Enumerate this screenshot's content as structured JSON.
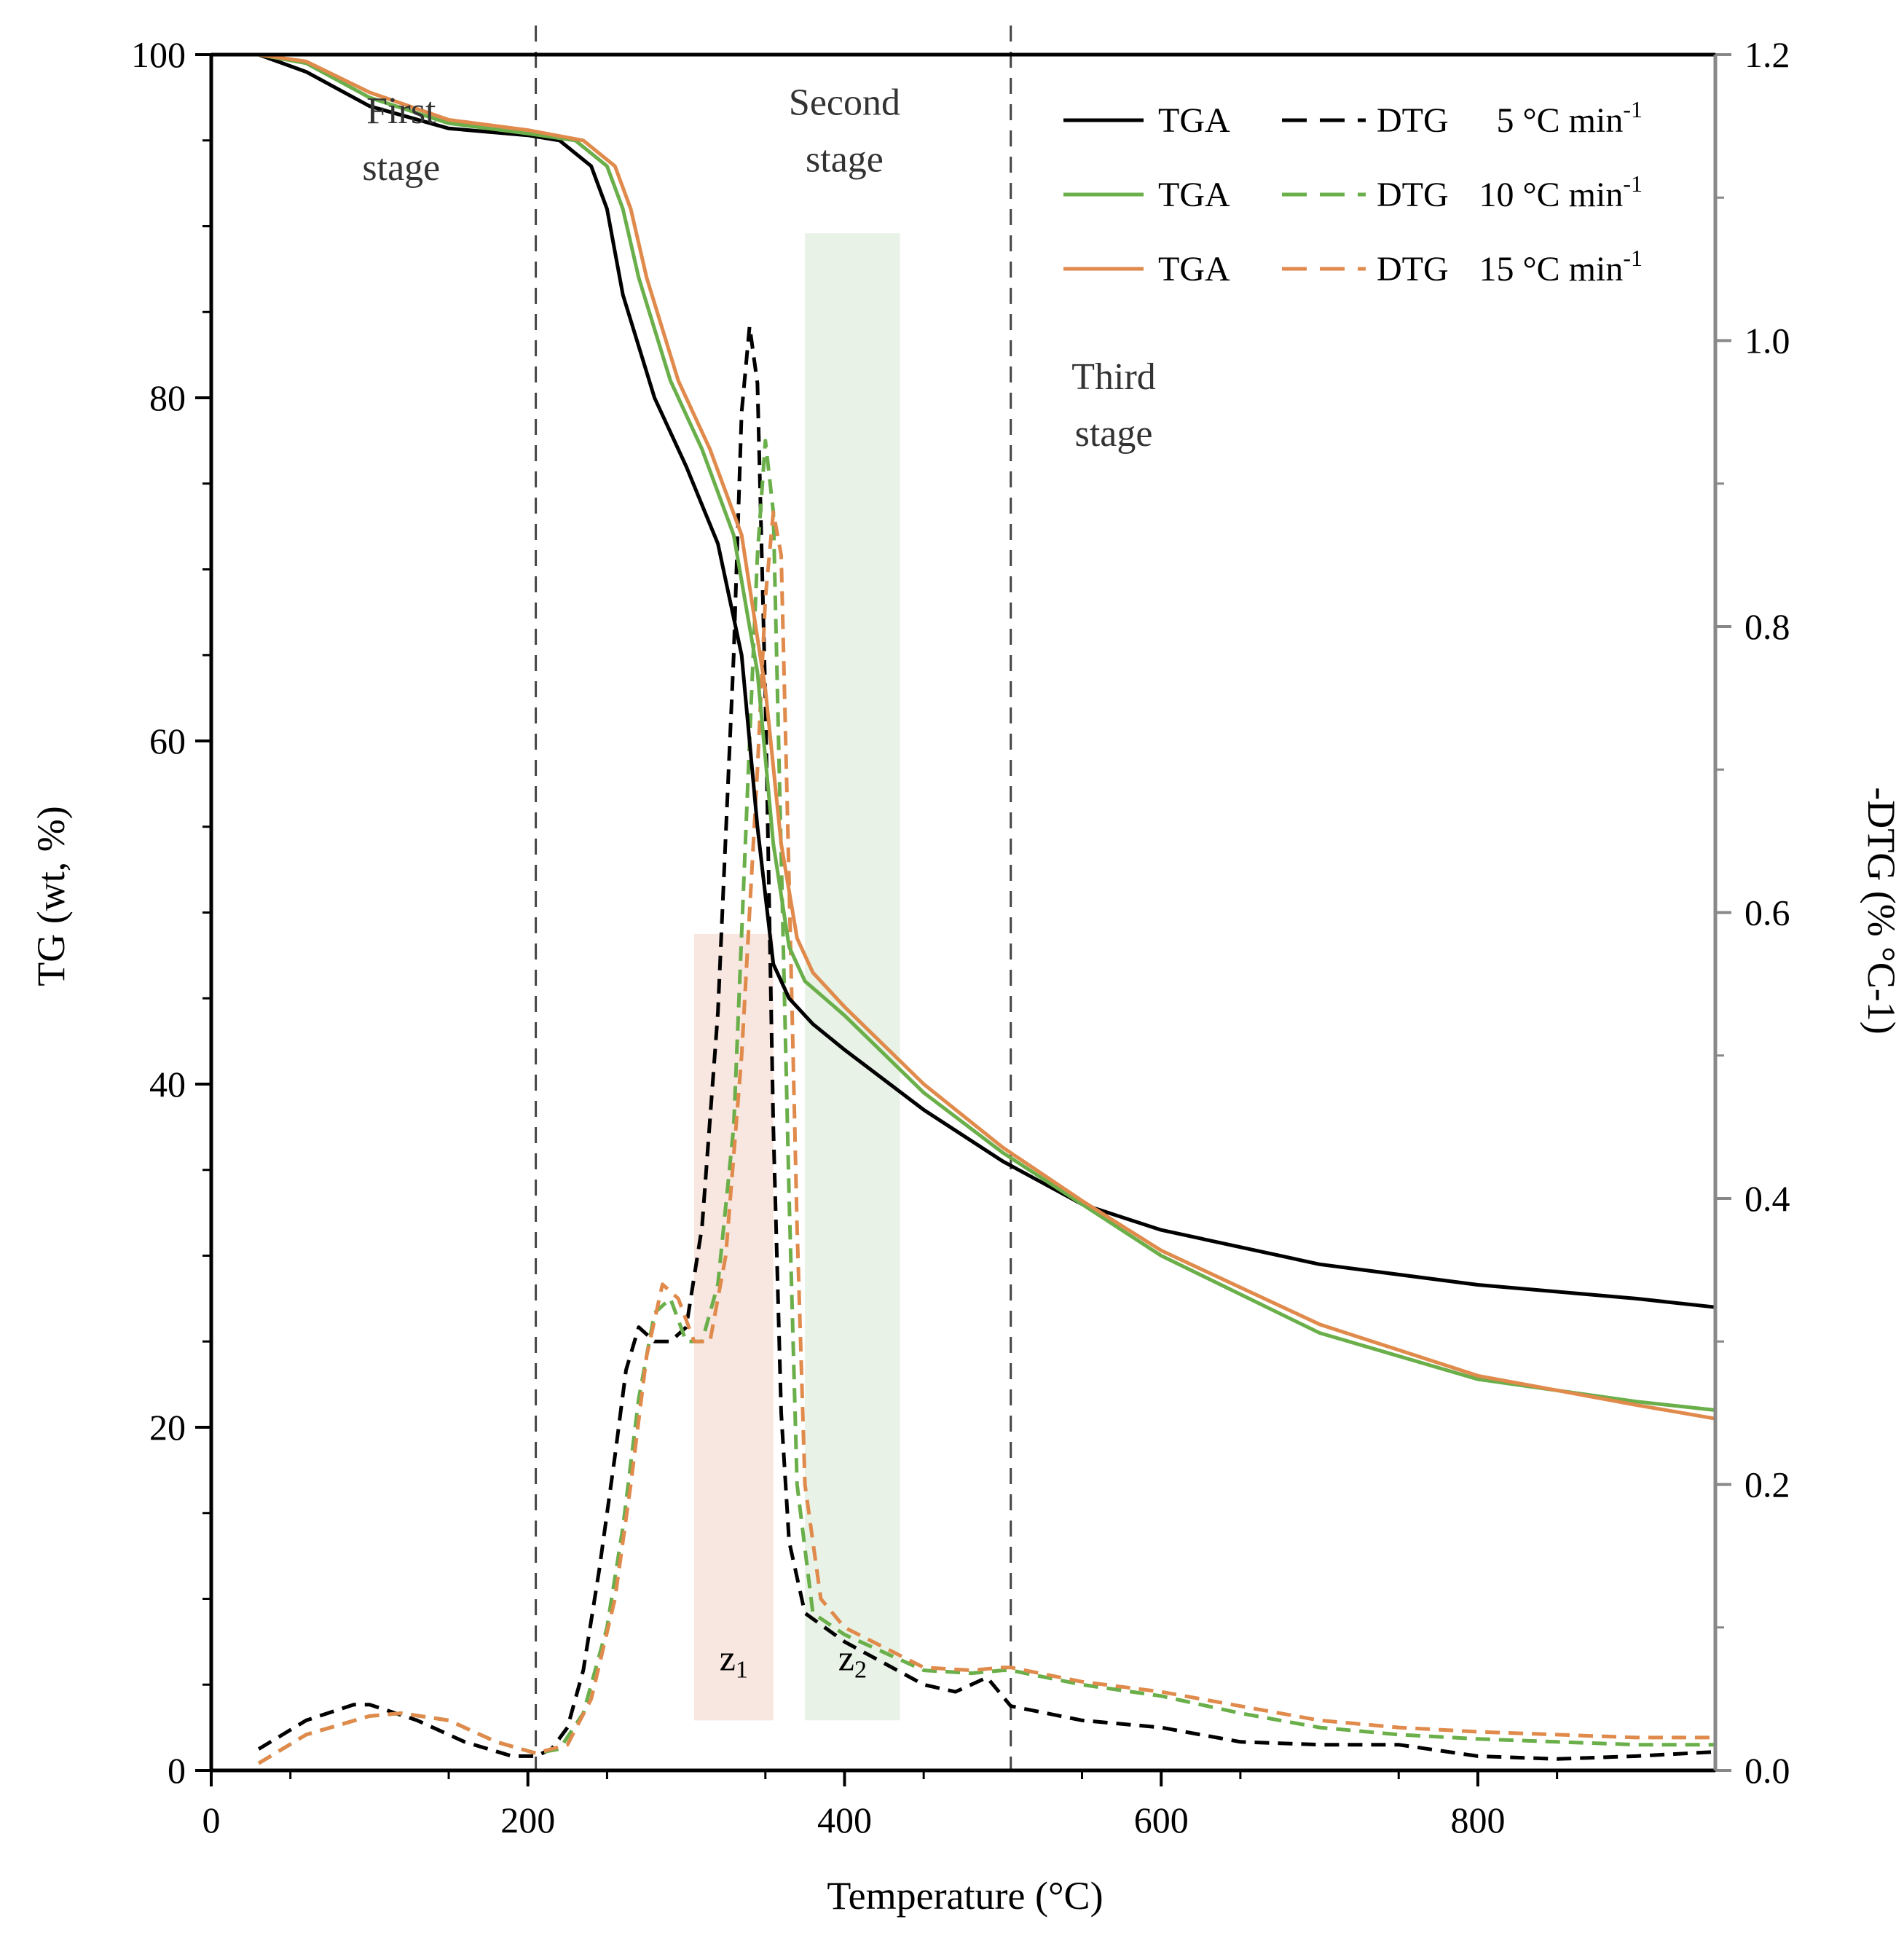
{
  "chart_data": {
    "type": "line",
    "xlabel": "Temperature (°C)",
    "ylabel_left": "TG (wt, %)",
    "ylabel_right": "-DTG (% °C-1)",
    "xlim": [
      0,
      950
    ],
    "ylim_left": [
      0,
      100
    ],
    "ylim_right": [
      0,
      1.2
    ],
    "x_ticks": [
      0,
      200,
      400,
      600,
      800
    ],
    "x_tick_labels": [
      "0",
      "200",
      "400",
      "600",
      "800"
    ],
    "y_left_ticks": [
      0,
      20,
      40,
      60,
      80,
      100
    ],
    "y_left_tick_labels": [
      "0",
      "20",
      "40",
      "60",
      "80",
      "100"
    ],
    "y_right_ticks": [
      0,
      0.2,
      0.4,
      0.6,
      0.8,
      1.0,
      1.2
    ],
    "y_right_tick_labels": [
      "0.0",
      "0.2",
      "0.4",
      "0.6",
      "0.8",
      "1.0",
      "1.2"
    ],
    "stage_dividers": [
      205,
      505
    ],
    "stages": [
      {
        "line1": "First",
        "line2": "stage",
        "x": 120,
        "y": 96
      },
      {
        "line1": "Second",
        "line2": "stage",
        "x": 400,
        "y": 96.5
      },
      {
        "line1": "Third",
        "line2": "stage",
        "x": 570,
        "y": 80.5
      }
    ],
    "zones": [
      {
        "name": "z",
        "sub": "1",
        "x0": 305,
        "x1": 355,
        "y_top_right": 0.585,
        "color": "#f8e6e0"
      },
      {
        "name": "z",
        "sub": "2",
        "x0": 375,
        "x1": 435,
        "y_top_right": 1.075,
        "color": "#e8f2e6"
      }
    ],
    "legend": [
      {
        "tga": "TGA",
        "dtg": "DTG",
        "rate": "5 °C min",
        "sup": "-1",
        "color": "#000000"
      },
      {
        "tga": "TGA",
        "dtg": "DTG",
        "rate": "10 °C min",
        "sup": "-1",
        "color": "#6aaf4a"
      },
      {
        "tga": "TGA",
        "dtg": "DTG",
        "rate": "15 °C min",
        "sup": "-1",
        "color": "#e08a4c"
      }
    ],
    "series": [
      {
        "name": "TGA 5 °C min-1",
        "axis": "left",
        "style": "solid",
        "color": "#000000",
        "x": [
          30,
          60,
          100,
          150,
          200,
          220,
          240,
          250,
          260,
          280,
          300,
          320,
          335,
          345,
          355,
          365,
          380,
          400,
          450,
          500,
          550,
          600,
          700,
          800,
          900,
          950
        ],
        "y": [
          100,
          99,
          97,
          95.7,
          95.3,
          95,
          93.5,
          91,
          86,
          80,
          76,
          71.5,
          65,
          55,
          47,
          45,
          43.5,
          42,
          38.5,
          35.5,
          33,
          31.5,
          29.5,
          28.3,
          27.5,
          27
        ]
      },
      {
        "name": "TGA 10 °C min-1",
        "axis": "left",
        "style": "solid",
        "color": "#6aaf4a",
        "x": [
          30,
          60,
          100,
          150,
          200,
          230,
          250,
          260,
          270,
          290,
          310,
          330,
          345,
          355,
          365,
          375,
          400,
          450,
          500,
          550,
          600,
          700,
          800,
          900,
          950
        ],
        "y": [
          100,
          99.5,
          97.5,
          96,
          95.4,
          95,
          93.5,
          91,
          87,
          81,
          77,
          72,
          64,
          54,
          48,
          46,
          44,
          39.5,
          36,
          33,
          30,
          25.5,
          22.8,
          21.5,
          21
        ]
      },
      {
        "name": "TGA 15 °C min-1",
        "axis": "left",
        "style": "solid",
        "color": "#e08a4c",
        "x": [
          30,
          60,
          100,
          150,
          200,
          235,
          255,
          265,
          275,
          295,
          315,
          335,
          350,
          360,
          370,
          380,
          400,
          450,
          500,
          550,
          600,
          700,
          800,
          900,
          950
        ],
        "y": [
          100,
          99.6,
          97.8,
          96.2,
          95.6,
          95,
          93.5,
          91,
          87,
          81,
          77,
          72,
          63,
          54,
          48.5,
          46.5,
          44.5,
          40,
          36.3,
          33.2,
          30.3,
          26,
          23,
          21.3,
          20.5
        ]
      },
      {
        "name": "DTG 5 °C min-1",
        "axis": "right",
        "style": "dashed",
        "color": "#000000",
        "x": [
          30,
          60,
          90,
          100,
          130,
          160,
          190,
          205,
          215,
          225,
          235,
          245,
          255,
          262,
          270,
          280,
          290,
          300,
          310,
          320,
          330,
          335,
          340,
          345,
          350,
          355,
          360,
          365,
          375,
          400,
          450,
          470,
          480,
          490,
          505,
          550,
          600,
          650,
          700,
          750,
          800,
          850,
          900,
          950
        ],
        "y": [
          0.015,
          0.035,
          0.046,
          0.046,
          0.035,
          0.02,
          0.01,
          0.01,
          0.015,
          0.03,
          0.07,
          0.14,
          0.22,
          0.28,
          0.31,
          0.3,
          0.3,
          0.31,
          0.38,
          0.53,
          0.78,
          0.95,
          1.01,
          0.97,
          0.75,
          0.45,
          0.25,
          0.16,
          0.11,
          0.09,
          0.06,
          0.055,
          0.06,
          0.065,
          0.045,
          0.035,
          0.03,
          0.02,
          0.018,
          0.018,
          0.01,
          0.008,
          0.01,
          0.013
        ]
      },
      {
        "name": "DTG 10 °C min-1",
        "axis": "right",
        "style": "dashed",
        "color": "#6aaf4a",
        "x": [
          30,
          60,
          100,
          120,
          150,
          180,
          205,
          220,
          235,
          250,
          260,
          270,
          280,
          290,
          300,
          310,
          320,
          330,
          340,
          345,
          350,
          355,
          360,
          365,
          370,
          380,
          400,
          450,
          480,
          500,
          505,
          550,
          600,
          650,
          700,
          750,
          800,
          850,
          900,
          950
        ],
        "y": [
          0.005,
          0.025,
          0.038,
          0.04,
          0.035,
          0.02,
          0.012,
          0.015,
          0.04,
          0.1,
          0.17,
          0.26,
          0.32,
          0.33,
          0.3,
          0.3,
          0.34,
          0.45,
          0.72,
          0.85,
          0.93,
          0.88,
          0.64,
          0.4,
          0.2,
          0.11,
          0.095,
          0.07,
          0.068,
          0.07,
          0.07,
          0.06,
          0.052,
          0.04,
          0.03,
          0.025,
          0.022,
          0.02,
          0.018,
          0.018
        ]
      },
      {
        "name": "DTG 15 °C min-1",
        "axis": "right",
        "style": "dashed",
        "color": "#e08a4c",
        "x": [
          30,
          60,
          100,
          120,
          150,
          180,
          205,
          225,
          240,
          255,
          265,
          275,
          285,
          295,
          305,
          315,
          325,
          335,
          345,
          350,
          355,
          360,
          365,
          370,
          375,
          385,
          400,
          450,
          480,
          500,
          505,
          550,
          600,
          650,
          700,
          750,
          800,
          850,
          900,
          950
        ],
        "y": [
          0.005,
          0.025,
          0.038,
          0.04,
          0.035,
          0.02,
          0.012,
          0.018,
          0.05,
          0.12,
          0.2,
          0.29,
          0.34,
          0.33,
          0.3,
          0.3,
          0.36,
          0.5,
          0.7,
          0.82,
          0.88,
          0.85,
          0.62,
          0.38,
          0.2,
          0.12,
          0.1,
          0.072,
          0.07,
          0.072,
          0.072,
          0.062,
          0.055,
          0.045,
          0.035,
          0.03,
          0.027,
          0.025,
          0.023,
          0.023
        ]
      }
    ]
  }
}
